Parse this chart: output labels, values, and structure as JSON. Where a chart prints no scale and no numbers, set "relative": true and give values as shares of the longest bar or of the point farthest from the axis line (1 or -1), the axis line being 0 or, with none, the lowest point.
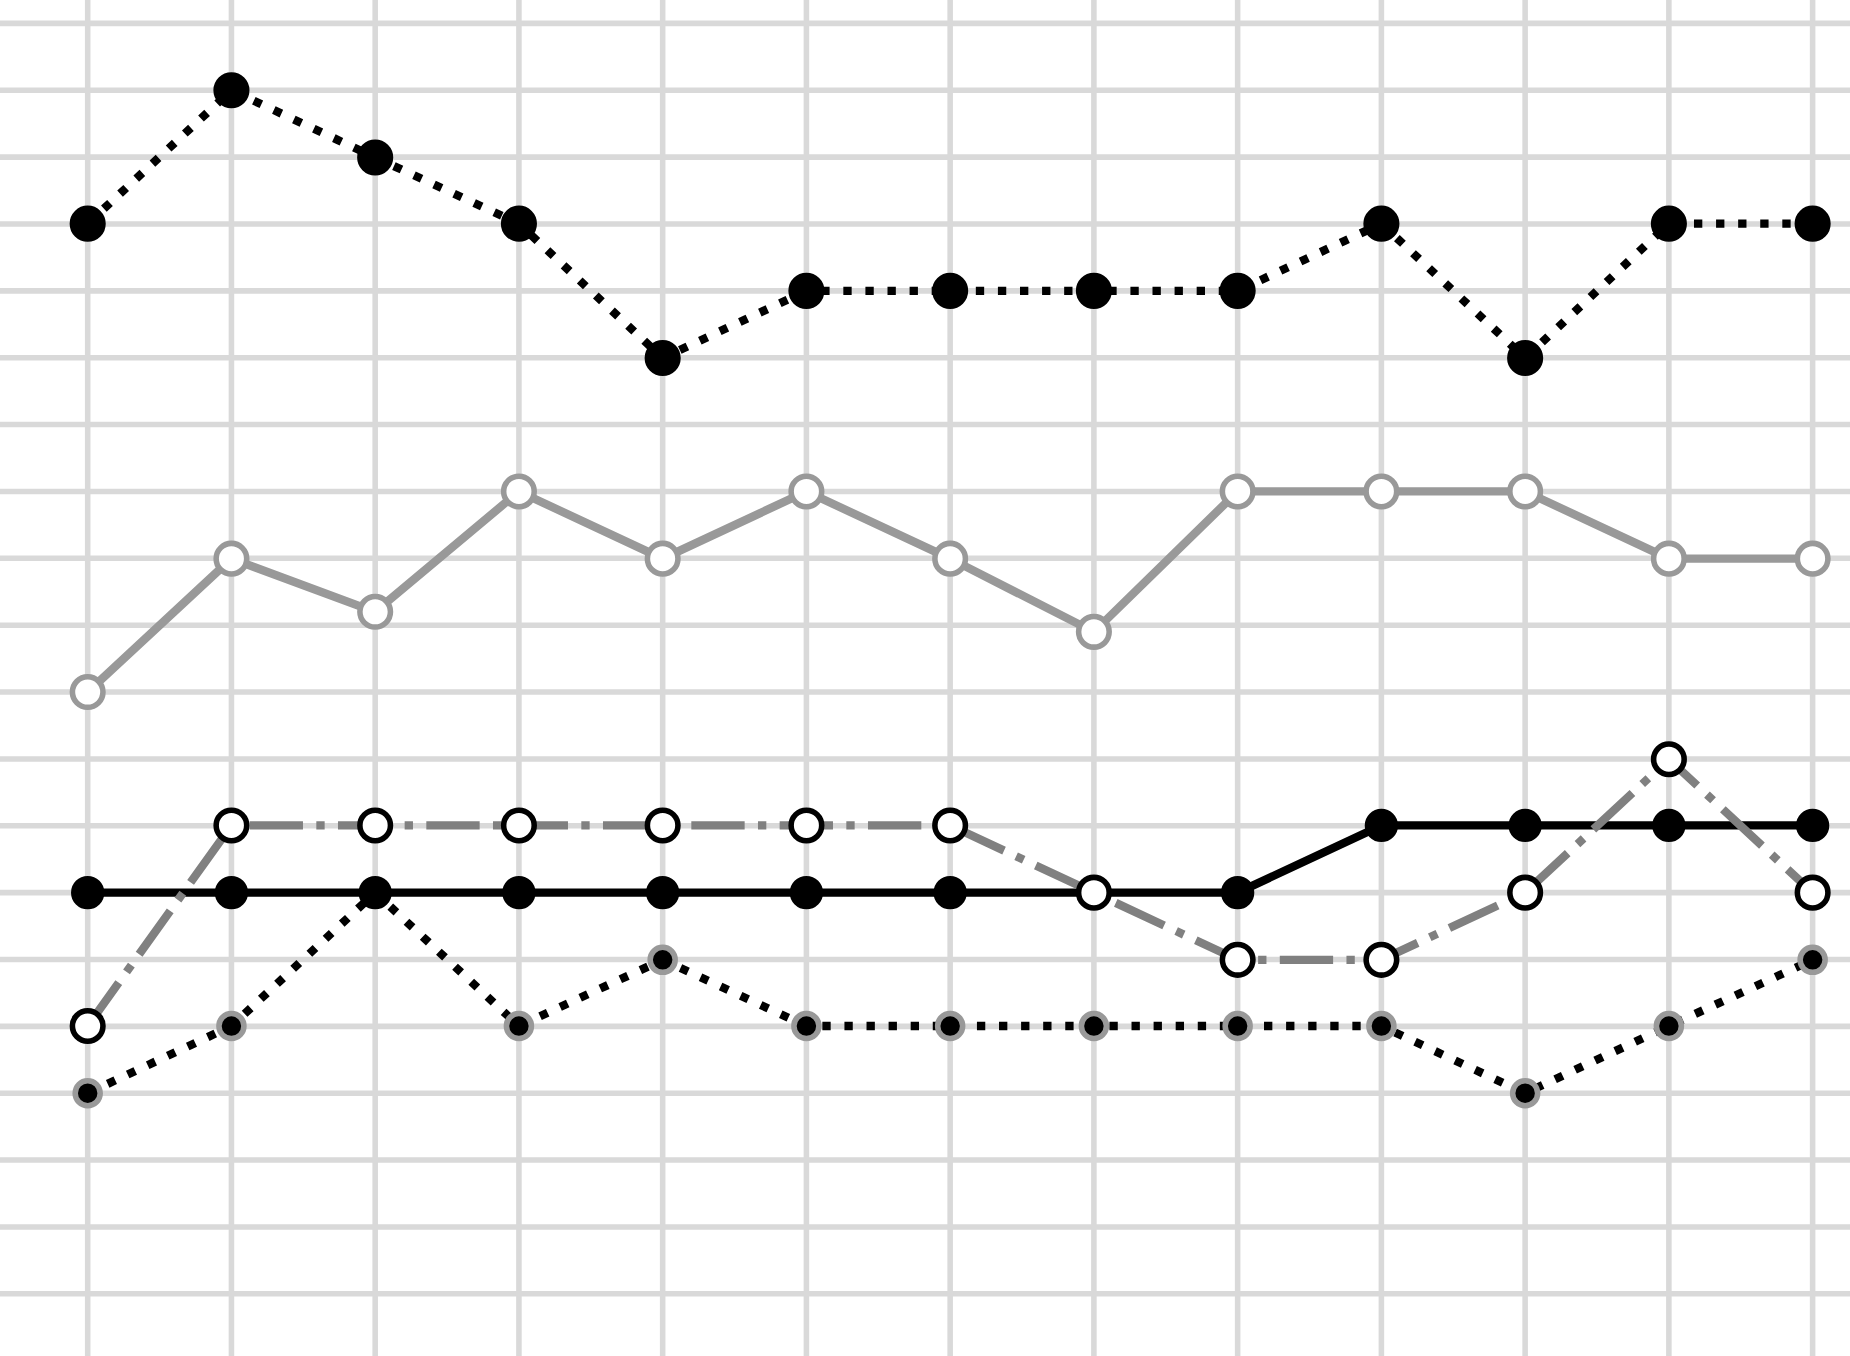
{
  "chart_data": {
    "type": "line",
    "relative": true,
    "categories": [
      null,
      null,
      null,
      null,
      null,
      null,
      null,
      null,
      null,
      null,
      null,
      null,
      null
    ],
    "series": [
      {
        "color": "#000000",
        "line_style": "dotted",
        "marker": "circle",
        "values": [
          0.867,
          1,
          0.933,
          0.867,
          0.733,
          0.8,
          0.8,
          0.8,
          0.8,
          0.867,
          0.733,
          0.867,
          0.867
        ]
      },
      {
        "color": "#999999",
        "line_style": "solid",
        "marker": "circle",
        "values": [
          0.4,
          0.533,
          0.48,
          0.6,
          0.533,
          0.6,
          0.533,
          0.46,
          0.6,
          0.6,
          0.6,
          0.533,
          0.533
        ]
      },
      {
        "color": "#808080",
        "line_style": "dashdot",
        "marker": "circle",
        "values": [
          0.067,
          0.267,
          0.267,
          0.267,
          0.267,
          0.267,
          0.267,
          0.2,
          0.133,
          0.133,
          0.2,
          0.333,
          0.2
        ]
      },
      {
        "color": "#000000",
        "line_style": "solid",
        "marker": "circle",
        "values": [
          0.2,
          0.2,
          0.2,
          0.2,
          0.2,
          0.2,
          0.2,
          0.2,
          0.2,
          0.267,
          0.267,
          0.267,
          0.267
        ]
      },
      {
        "color": "#000000",
        "line_style": "dotted",
        "marker": "circle",
        "values": [
          0,
          0.067,
          0.2,
          0.067,
          0.133,
          0.067,
          0.067,
          0.067,
          0.067,
          0.067,
          0,
          0.067,
          0.133
        ]
      }
    ],
    "grid": true,
    "legend": false
  }
}
